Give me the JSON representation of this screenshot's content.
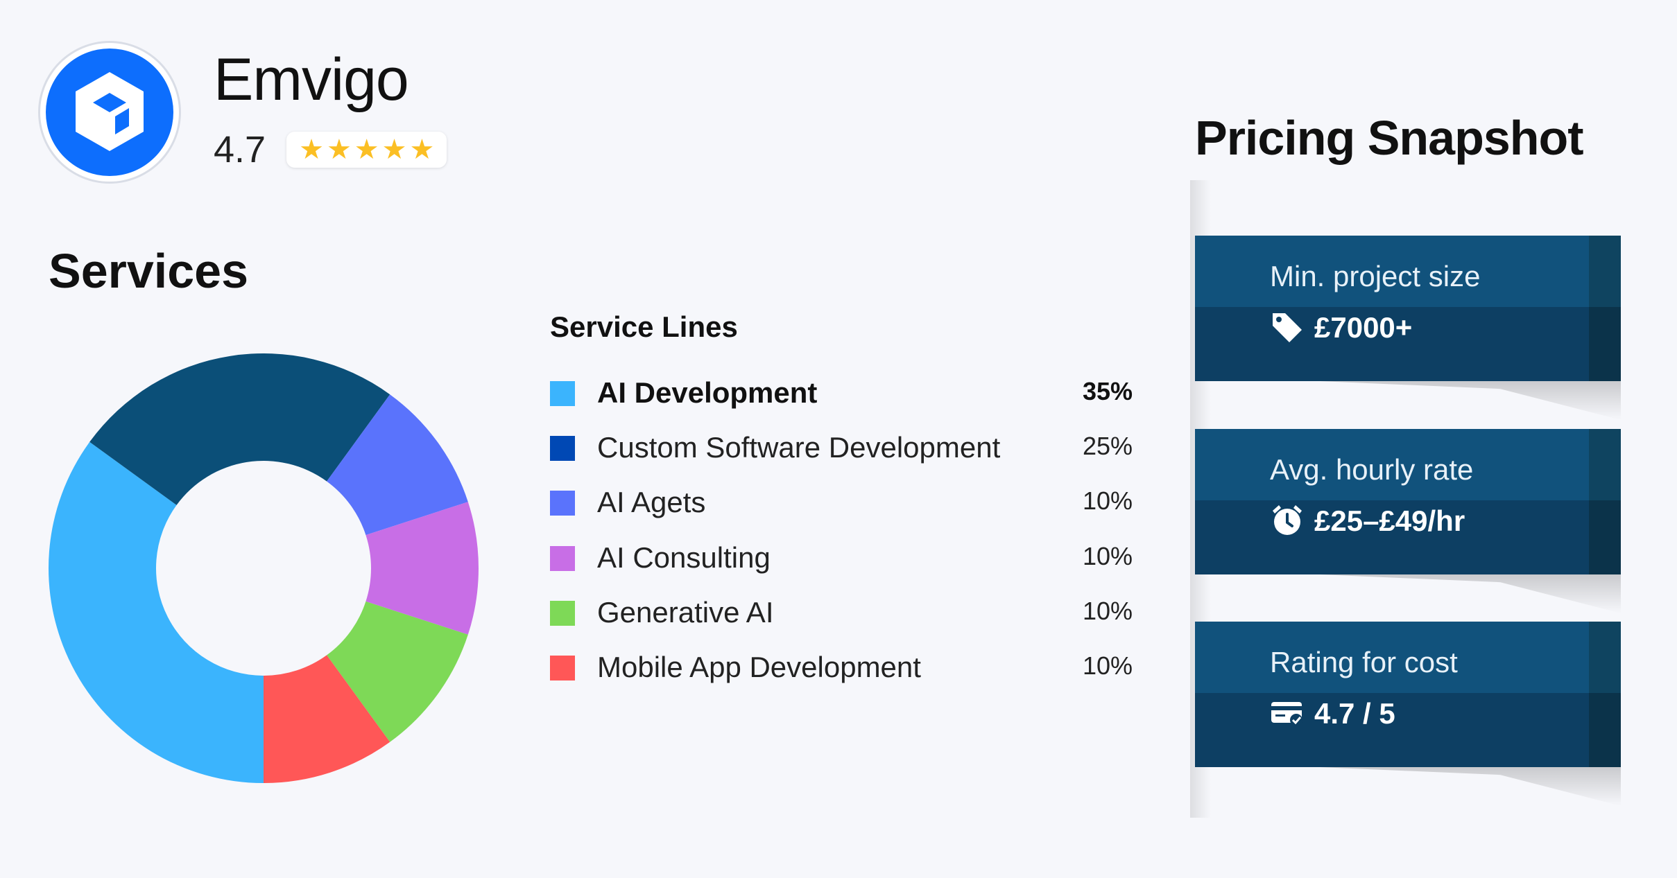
{
  "company": {
    "name": "Emvigo",
    "rating": "4.7",
    "stars": [
      "★",
      "★",
      "★",
      "★",
      "★"
    ],
    "logo_icon": "cube-icon",
    "brand_color": "#0d6efd"
  },
  "services": {
    "title": "Services",
    "legend_title": "Service Lines"
  },
  "chart_data": {
    "type": "pie",
    "donut": true,
    "title": "Services",
    "legend_title": "Service Lines",
    "categories": [
      "AI Development",
      "Custom Software Development",
      "AI Agets",
      "AI Consulting",
      "Generative AI",
      "Mobile App Development"
    ],
    "values": [
      35,
      25,
      10,
      10,
      10,
      10
    ],
    "labels": [
      "35%",
      "25%",
      "10%",
      "10%",
      "10%",
      "10%"
    ],
    "colors": [
      "#3bb4fd",
      "#0b4f78",
      "#5a73fc",
      "#c86ee6",
      "#7ed957",
      "#ff5757"
    ],
    "legend_swatch_colors": [
      "#3bb4fd",
      "#0048b4",
      "#5a73fc",
      "#c86ee6",
      "#7ed957",
      "#ff5757"
    ],
    "legend_position": "right",
    "highlighted_index": 0
  },
  "pricing": {
    "title": "Pricing Snapshot",
    "cards": [
      {
        "label": "Min. project size",
        "value": "£7000+",
        "icon": "price-tag-icon"
      },
      {
        "label": "Avg. hourly rate",
        "value": "£25–£49/hr",
        "icon": "alarm-clock-icon"
      },
      {
        "label": "Rating for cost",
        "value": "4.7 / 5",
        "icon": "credit-card-check-icon"
      }
    ]
  }
}
